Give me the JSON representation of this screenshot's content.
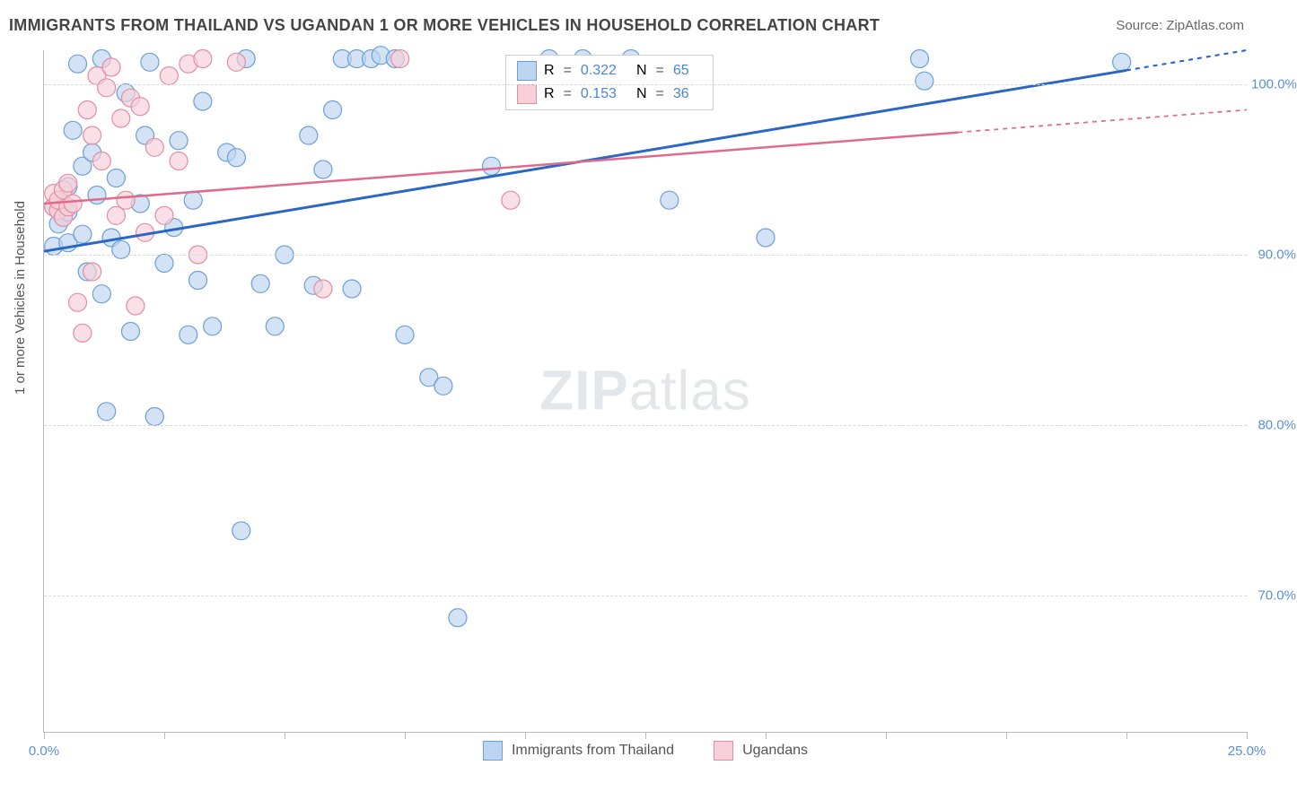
{
  "title": "IMMIGRANTS FROM THAILAND VS UGANDAN 1 OR MORE VEHICLES IN HOUSEHOLD CORRELATION CHART",
  "source_prefix": "Source: ",
  "source": "ZipAtlas.com",
  "y_axis_label": "1 or more Vehicles in Household",
  "watermark_a": "ZIP",
  "watermark_b": "atlas",
  "chart": {
    "type": "scatter",
    "xlim": [
      0,
      25
    ],
    "ylim": [
      62,
      102
    ],
    "x_label_min": "0.0%",
    "x_label_max": "25.0%",
    "x_ticks": [
      0,
      2.5,
      5,
      7.5,
      10,
      12.5,
      15,
      17.5,
      20,
      22.5,
      25
    ],
    "y_grid": [
      70,
      80,
      90,
      100
    ],
    "y_tick_labels": [
      "70.0%",
      "80.0%",
      "90.0%",
      "100.0%"
    ],
    "grid_color": "#d9d9d9",
    "axis_color": "#b8b8b8",
    "tick_label_color": "#5a8fd6",
    "background_color": "#ffffff",
    "series": [
      {
        "name": "Immigrants from Thailand",
        "marker_fill": "#bcd4ef",
        "marker_stroke": "#6b9fd6",
        "marker_radius": 10,
        "line_color": "#2a66c4",
        "line_width": 3,
        "r_value": "0.322",
        "n_value": "65",
        "trend": {
          "x1": 0,
          "y1": 90.2,
          "x2": 25,
          "y2": 102.0,
          "solid_until_x": 22.5
        },
        "points": [
          [
            0.2,
            90.5
          ],
          [
            0.2,
            92.8
          ],
          [
            0.3,
            91.8
          ],
          [
            0.4,
            93.0
          ],
          [
            0.4,
            92.2
          ],
          [
            0.5,
            94.0
          ],
          [
            0.5,
            92.5
          ],
          [
            0.5,
            90.7
          ],
          [
            0.6,
            97.3
          ],
          [
            0.7,
            101.2
          ],
          [
            0.8,
            95.2
          ],
          [
            0.8,
            91.2
          ],
          [
            0.9,
            89.0
          ],
          [
            1.0,
            96.0
          ],
          [
            1.1,
            93.5
          ],
          [
            1.2,
            101.5
          ],
          [
            1.2,
            87.7
          ],
          [
            1.3,
            80.8
          ],
          [
            1.4,
            91.0
          ],
          [
            1.5,
            94.5
          ],
          [
            1.6,
            90.3
          ],
          [
            1.7,
            99.5
          ],
          [
            1.8,
            85.5
          ],
          [
            2.0,
            93.0
          ],
          [
            2.1,
            97.0
          ],
          [
            2.2,
            101.3
          ],
          [
            2.3,
            80.5
          ],
          [
            2.5,
            89.5
          ],
          [
            2.7,
            91.6
          ],
          [
            2.8,
            96.7
          ],
          [
            3.0,
            85.3
          ],
          [
            3.1,
            93.2
          ],
          [
            3.2,
            88.5
          ],
          [
            3.3,
            99.0
          ],
          [
            3.5,
            85.8
          ],
          [
            3.8,
            96.0
          ],
          [
            4.0,
            95.7
          ],
          [
            4.1,
            73.8
          ],
          [
            4.2,
            101.5
          ],
          [
            4.5,
            88.3
          ],
          [
            4.8,
            85.8
          ],
          [
            5.0,
            90.0
          ],
          [
            5.5,
            97.0
          ],
          [
            5.6,
            88.2
          ],
          [
            5.8,
            95.0
          ],
          [
            6.0,
            98.5
          ],
          [
            6.2,
            101.5
          ],
          [
            6.4,
            88.0
          ],
          [
            6.5,
            101.5
          ],
          [
            6.8,
            101.5
          ],
          [
            7.0,
            101.7
          ],
          [
            7.3,
            101.5
          ],
          [
            7.5,
            85.3
          ],
          [
            8.0,
            82.8
          ],
          [
            8.3,
            82.3
          ],
          [
            8.6,
            68.7
          ],
          [
            9.3,
            95.2
          ],
          [
            10.5,
            101.5
          ],
          [
            11.2,
            101.5
          ],
          [
            12.2,
            101.5
          ],
          [
            13.0,
            93.2
          ],
          [
            15.0,
            91.0
          ],
          [
            18.2,
            101.5
          ],
          [
            18.3,
            100.2
          ],
          [
            22.4,
            101.3
          ]
        ]
      },
      {
        "name": "Ugandans",
        "marker_fill": "#f7cfd9",
        "marker_stroke": "#e48ba3",
        "marker_radius": 10,
        "line_color": "#e06a8a",
        "line_width": 2.5,
        "r_value": "0.153",
        "n_value": "36",
        "trend": {
          "x1": 0,
          "y1": 93.0,
          "x2": 25,
          "y2": 98.5,
          "solid_until_x": 19.0
        },
        "points": [
          [
            0.2,
            92.8
          ],
          [
            0.2,
            93.6
          ],
          [
            0.3,
            92.6
          ],
          [
            0.3,
            93.2
          ],
          [
            0.4,
            92.2
          ],
          [
            0.4,
            93.8
          ],
          [
            0.5,
            92.8
          ],
          [
            0.5,
            94.2
          ],
          [
            0.6,
            93.0
          ],
          [
            0.7,
            87.2
          ],
          [
            0.8,
            85.4
          ],
          [
            0.9,
            98.5
          ],
          [
            1.0,
            97.0
          ],
          [
            1.0,
            89.0
          ],
          [
            1.1,
            100.5
          ],
          [
            1.2,
            95.5
          ],
          [
            1.3,
            99.8
          ],
          [
            1.4,
            101.0
          ],
          [
            1.5,
            92.3
          ],
          [
            1.6,
            98.0
          ],
          [
            1.7,
            93.2
          ],
          [
            1.8,
            99.2
          ],
          [
            1.9,
            87.0
          ],
          [
            2.0,
            98.7
          ],
          [
            2.1,
            91.3
          ],
          [
            2.3,
            96.3
          ],
          [
            2.5,
            92.3
          ],
          [
            2.6,
            100.5
          ],
          [
            2.8,
            95.5
          ],
          [
            3.0,
            101.2
          ],
          [
            3.2,
            90.0
          ],
          [
            3.3,
            101.5
          ],
          [
            4.0,
            101.3
          ],
          [
            5.8,
            88.0
          ],
          [
            7.4,
            101.5
          ],
          [
            9.7,
            93.2
          ]
        ]
      }
    ]
  },
  "legend_bottom": {
    "series1": "Immigrants from Thailand",
    "series2": "Ugandans"
  },
  "legend_top": {
    "r_label": "R",
    "n_label": "N",
    "eq": "="
  }
}
